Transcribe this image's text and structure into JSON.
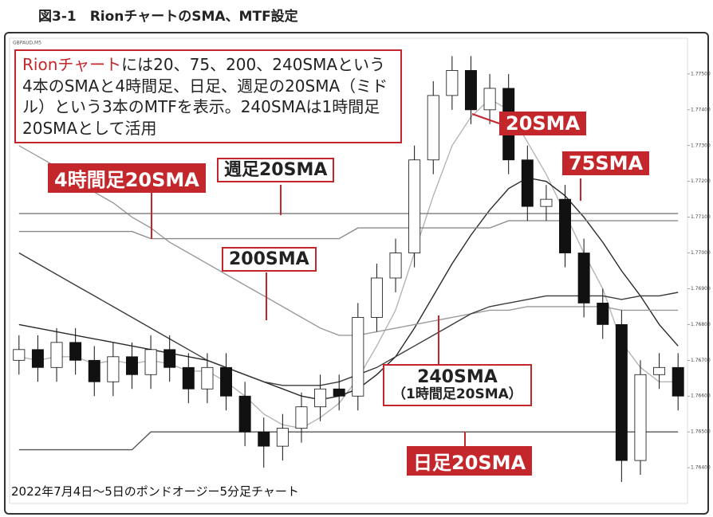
{
  "header": {
    "title": "図3-1　RionチャートのSMA、MTF設定"
  },
  "chart_data": {
    "type": "candlestick",
    "symbol": "GBPAUD,M5",
    "ylim": [
      1.763,
      1.776
    ],
    "yticks": [
      {
        "value": 1.764,
        "label": "1.76400"
      },
      {
        "value": 1.765,
        "label": "1.76500"
      },
      {
        "value": 1.766,
        "label": "1.76600"
      },
      {
        "value": 1.767,
        "label": "1.76700"
      },
      {
        "value": 1.768,
        "label": "1.76800"
      },
      {
        "value": 1.769,
        "label": "1.76900"
      },
      {
        "value": 1.77,
        "label": "1.77000"
      },
      {
        "value": 1.771,
        "label": "1.77100"
      },
      {
        "value": 1.772,
        "label": "1.77200"
      },
      {
        "value": 1.773,
        "label": "1.77300"
      },
      {
        "value": 1.774,
        "label": "1.77400"
      },
      {
        "value": 1.775,
        "label": "1.77500"
      }
    ],
    "up_color": "#ffffff",
    "down_color": "#111111",
    "open": [
      1.767,
      1.7673,
      1.7668,
      1.7675,
      1.767,
      1.7664,
      1.7671,
      1.7666,
      1.7673,
      1.7668,
      1.7662,
      1.7668,
      1.766,
      1.765,
      1.7646,
      1.7651,
      1.7657,
      1.7662,
      1.766,
      1.7682,
      1.7693,
      1.77,
      1.7726,
      1.7744,
      1.7751,
      1.774,
      1.7746,
      1.7726,
      1.7713,
      1.7715,
      1.77,
      1.7686,
      1.768,
      1.7642,
      1.7666,
      1.7668
    ],
    "high": [
      1.7677,
      1.7677,
      1.7679,
      1.7679,
      1.7674,
      1.7675,
      1.7675,
      1.7677,
      1.7677,
      1.7672,
      1.7672,
      1.7672,
      1.7664,
      1.7654,
      1.7655,
      1.7661,
      1.7666,
      1.7666,
      1.7686,
      1.7697,
      1.7704,
      1.773,
      1.7748,
      1.7755,
      1.7755,
      1.775,
      1.775,
      1.773,
      1.7719,
      1.7719,
      1.7704,
      1.769,
      1.7684,
      1.767,
      1.7672,
      1.7672
    ],
    "low": [
      1.7666,
      1.7664,
      1.7664,
      1.7666,
      1.766,
      1.766,
      1.7662,
      1.7662,
      1.7664,
      1.7658,
      1.7658,
      1.7656,
      1.7646,
      1.764,
      1.7642,
      1.7647,
      1.7653,
      1.7656,
      1.7656,
      1.7678,
      1.7689,
      1.7696,
      1.7722,
      1.774,
      1.7736,
      1.7736,
      1.7722,
      1.7709,
      1.7709,
      1.7696,
      1.7682,
      1.7676,
      1.7636,
      1.7638,
      1.7662,
      1.7656
    ],
    "close": [
      1.7673,
      1.7668,
      1.7675,
      1.767,
      1.7664,
      1.7671,
      1.7666,
      1.7673,
      1.7668,
      1.7662,
      1.7668,
      1.766,
      1.765,
      1.7646,
      1.7651,
      1.7657,
      1.7662,
      1.766,
      1.7682,
      1.7693,
      1.77,
      1.7726,
      1.7744,
      1.7751,
      1.774,
      1.7746,
      1.7726,
      1.7713,
      1.7715,
      1.77,
      1.7686,
      1.768,
      1.7642,
      1.7666,
      1.7668,
      1.766
    ],
    "series": [
      {
        "name": "20SMA",
        "color": "#b4b4b4",
        "values": [
          1.7671,
          1.767,
          1.7671,
          1.7671,
          1.7669,
          1.767,
          1.7669,
          1.767,
          1.7669,
          1.7667,
          1.7667,
          1.7664,
          1.766,
          1.7655,
          1.7652,
          1.7651,
          1.7654,
          1.7658,
          1.7665,
          1.7674,
          1.7684,
          1.77,
          1.7716,
          1.773,
          1.7738,
          1.7743,
          1.774,
          1.7731,
          1.7722,
          1.7711,
          1.77,
          1.769,
          1.7675,
          1.7668,
          1.7664,
          1.7664
        ]
      },
      {
        "name": "75SMA",
        "color": "#2a2a2a",
        "values": [
          1.768,
          1.7679,
          1.7678,
          1.7677,
          1.7676,
          1.7675,
          1.7674,
          1.7673,
          1.7672,
          1.7671,
          1.767,
          1.7668,
          1.7666,
          1.7664,
          1.7662,
          1.766,
          1.7659,
          1.766,
          1.7662,
          1.7666,
          1.7671,
          1.7679,
          1.7688,
          1.7697,
          1.7705,
          1.7712,
          1.7718,
          1.7721,
          1.772,
          1.7716,
          1.771,
          1.7703,
          1.7695,
          1.7688,
          1.768,
          1.7674
        ]
      },
      {
        "name": "200SMA",
        "color": "#9a9a9a",
        "values": [
          1.773,
          1.7727,
          1.7724,
          1.7721,
          1.7717,
          1.7714,
          1.771,
          1.7707,
          1.7703,
          1.77,
          1.7697,
          1.7694,
          1.7691,
          1.7688,
          1.7685,
          1.7682,
          1.7679,
          1.7677,
          1.7677,
          1.7678,
          1.7679,
          1.768,
          1.7681,
          1.7682,
          1.7683,
          1.7684,
          1.7684,
          1.7685,
          1.7685,
          1.7685,
          1.7685,
          1.7685,
          1.7684,
          1.7684,
          1.7684,
          1.7684
        ]
      },
      {
        "name": "240SMA",
        "color": "#3a3a3a",
        "values": [
          1.77,
          1.7697,
          1.7694,
          1.7691,
          1.7688,
          1.7685,
          1.7682,
          1.7679,
          1.7676,
          1.7673,
          1.767,
          1.7668,
          1.7666,
          1.7664,
          1.7663,
          1.7663,
          1.7663,
          1.7664,
          1.7666,
          1.7668,
          1.7671,
          1.7674,
          1.7677,
          1.768,
          1.7683,
          1.7685,
          1.7686,
          1.7687,
          1.7688,
          1.7688,
          1.7688,
          1.7688,
          1.7687,
          1.7688,
          1.7688,
          1.7689
        ]
      },
      {
        "name": "4時間足20SMA",
        "color": "#8a8a8a",
        "values": [
          1.7706,
          1.7706,
          1.7706,
          1.7706,
          1.7706,
          1.7706,
          1.7706,
          1.7704,
          1.7704,
          1.7704,
          1.7704,
          1.7704,
          1.7704,
          1.7704,
          1.7704,
          1.7704,
          1.7704,
          1.7704,
          1.7707,
          1.7707,
          1.7707,
          1.7707,
          1.7707,
          1.7707,
          1.7707,
          1.7707,
          1.7709,
          1.7709,
          1.7709,
          1.7709,
          1.7709,
          1.7709,
          1.7709,
          1.7709,
          1.7709,
          1.7709
        ]
      },
      {
        "name": "週足20SMA",
        "color": "#7a7a7a",
        "values": [
          1.7711,
          1.7711,
          1.7711,
          1.7711,
          1.7711,
          1.7711,
          1.7711,
          1.7711,
          1.7711,
          1.7711,
          1.7711,
          1.7711,
          1.7711,
          1.7711,
          1.7711,
          1.7711,
          1.7711,
          1.7711,
          1.7711,
          1.7711,
          1.7711,
          1.7711,
          1.7711,
          1.7711,
          1.7711,
          1.7711,
          1.7711,
          1.7711,
          1.7711,
          1.7711,
          1.7711,
          1.7711,
          1.7711,
          1.7711,
          1.7711,
          1.7711
        ]
      },
      {
        "name": "日足20SMA",
        "color": "#555555",
        "values": [
          1.7645,
          1.7645,
          1.7645,
          1.7645,
          1.7645,
          1.7645,
          1.7645,
          1.765,
          1.765,
          1.765,
          1.765,
          1.765,
          1.765,
          1.765,
          1.765,
          1.765,
          1.765,
          1.765,
          1.765,
          1.765,
          1.765,
          1.765,
          1.765,
          1.765,
          1.765,
          1.765,
          1.765,
          1.765,
          1.765,
          1.765,
          1.765,
          1.765,
          1.765,
          1.765,
          1.765,
          1.765
        ]
      }
    ],
    "caption": {
      "highlight": "Rionチャート",
      "text": "には20、75、200、240SMAという4本のSMAと4時間足、日足、週足の20SMA（ミドル）という3本のMTFを表示。240SMAは1時間足20SMAとして活用"
    },
    "note_240": "（1時間足20SMA）",
    "footnote": "2022年7月4日～5日のポンドオージー5分足チャート"
  }
}
